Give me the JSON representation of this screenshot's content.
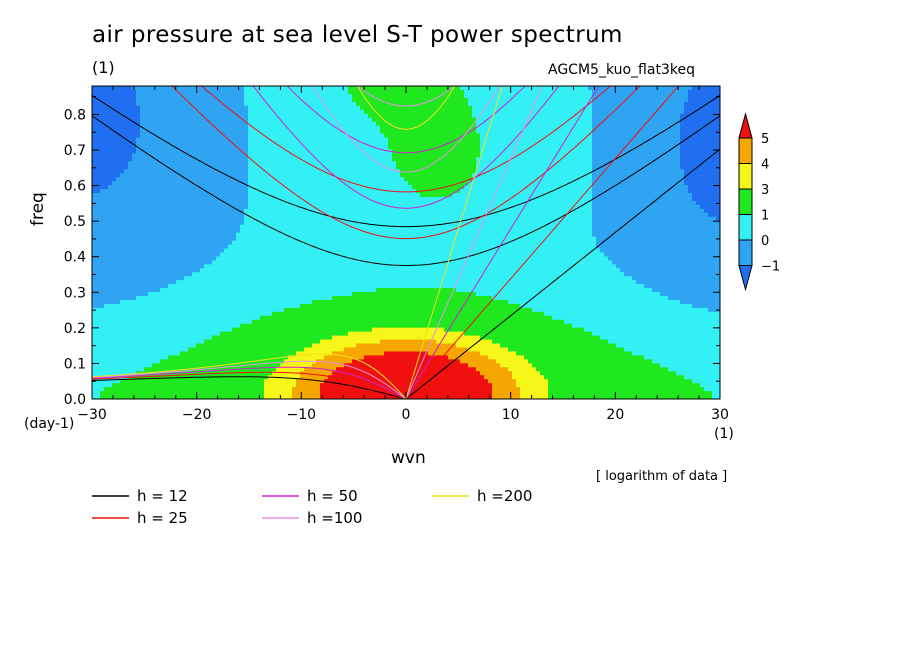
{
  "chart_data": {
    "type": "heatmap",
    "title": "air pressure at sea level S-T power spectrum",
    "title_unit": "(1)",
    "model_label": "AGCM5_kuo_flat3keq",
    "xlabel": "wvn",
    "ylabel": "freq",
    "x_unit": "(1)",
    "y_unit": "(day-1)",
    "note": "[ logarithm of data ]",
    "xlim": [
      -30,
      30
    ],
    "ylim": [
      0,
      0.88
    ],
    "xticks": [
      -30,
      -20,
      -10,
      0,
      10,
      20,
      30
    ],
    "yticks": [
      0.0,
      0.1,
      0.2,
      0.3,
      0.4,
      0.5,
      0.6,
      0.7,
      0.8
    ],
    "colorbar": {
      "levels": [
        -1,
        0,
        1,
        3,
        4,
        5
      ],
      "tick_labels": [
        "-1",
        "0",
        "1",
        "3",
        "4",
        "5"
      ],
      "colors": [
        "#1f6ff0",
        "#2ea4f2",
        "#33f0f5",
        "#1fe81f",
        "#f6f619",
        "#f6a600",
        "#f01010"
      ]
    },
    "dispersion_curves": [
      {
        "name": "h = 12",
        "color": "#000000"
      },
      {
        "name": "h = 25",
        "color": "#f01010"
      },
      {
        "name": "h = 50",
        "color": "#d020d0"
      },
      {
        "name": "h =100",
        "color": "#e890e8"
      },
      {
        "name": "h =200",
        "color": "#f0e020"
      }
    ]
  }
}
